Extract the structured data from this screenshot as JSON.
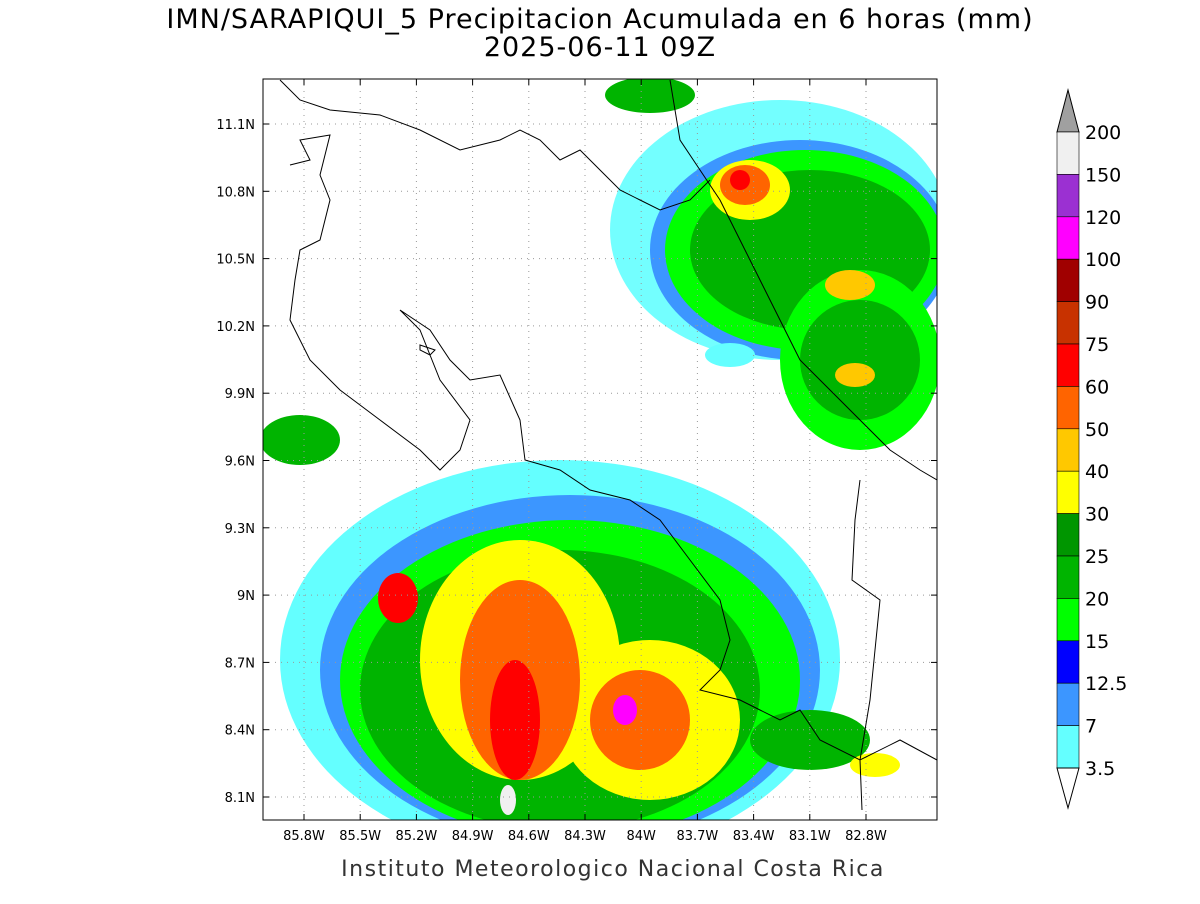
{
  "header": {
    "title": "IMN/SARAPIQUI_5 Precipitacion Acumulada en 6 horas (mm)",
    "subtitle": "2025-06-11 09Z"
  },
  "map": {
    "lat_labels": [
      "11.1N",
      "10.8N",
      "10.5N",
      "10.2N",
      "9.9N",
      "9.6N",
      "9.3N",
      "9N",
      "8.7N",
      "8.4N",
      "8.1N"
    ],
    "lon_labels": [
      "85.8W",
      "85.5W",
      "85.2W",
      "84.9W",
      "84.6W",
      "84.3W",
      "84W",
      "83.7W",
      "83.4W",
      "83.1W",
      "82.8W"
    ]
  },
  "legend": {
    "labels": [
      "200",
      "150",
      "120",
      "100",
      "90",
      "75",
      "60",
      "50",
      "40",
      "30",
      "25",
      "20",
      "15",
      "12.5",
      "7",
      "3.5"
    ],
    "colors": [
      "#f0f0f0",
      "#9b30d2",
      "#ff00ff",
      "#a00000",
      "#c83200",
      "#ff0000",
      "#ff6400",
      "#ffc800",
      "#ffff00",
      "#009600",
      "#00b400",
      "#00ff00",
      "#0000ff",
      "#3c96ff",
      "#64ffff"
    ],
    "over_color": "#a0a0a0",
    "under_color": "#ffffff"
  },
  "footer": "Instituto Meteorologico Nacional Costa Rica"
}
